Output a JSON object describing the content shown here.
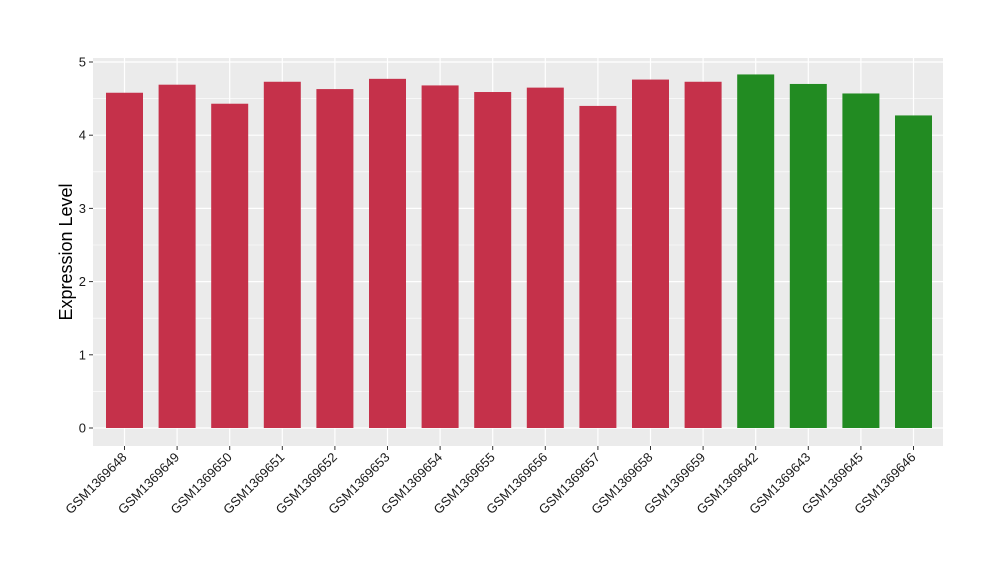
{
  "chart_data": {
    "type": "bar",
    "title": "",
    "xlabel": "",
    "ylabel": "Expression Level",
    "ylim": [
      0,
      5
    ],
    "yticks": [
      0,
      1,
      2,
      3,
      4,
      5
    ],
    "grid": true,
    "categories": [
      "GSM1369648",
      "GSM1369649",
      "GSM1369650",
      "GSM1369651",
      "GSM1369652",
      "GSM1369653",
      "GSM1369654",
      "GSM1369655",
      "GSM1369656",
      "GSM1369657",
      "GSM1369658",
      "GSM1369659",
      "GSM1369642",
      "GSM1369643",
      "GSM1369645",
      "GSM1369646"
    ],
    "values": [
      4.58,
      4.69,
      4.43,
      4.73,
      4.63,
      4.77,
      4.68,
      4.59,
      4.65,
      4.4,
      4.76,
      4.73,
      4.83,
      4.7,
      4.57,
      4.27
    ],
    "bar_colors": [
      "#c5314a",
      "#c5314a",
      "#c5314a",
      "#c5314a",
      "#c5314a",
      "#c5314a",
      "#c5314a",
      "#c5314a",
      "#c5314a",
      "#c5314a",
      "#c5314a",
      "#c5314a",
      "#228b22",
      "#228b22",
      "#228b22",
      "#228b22"
    ],
    "panel_color": "#ebebeb",
    "grid_color": "#ffffff"
  }
}
